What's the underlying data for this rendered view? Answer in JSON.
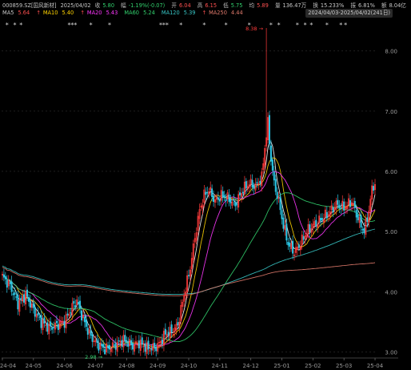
{
  "header": {
    "code": "000859.SZ[国风新材]",
    "date": "2025/04/02",
    "close_label": "收",
    "close": "5.80",
    "change_label": "幅",
    "change": "-1.19%(-0.07)",
    "open_label": "开",
    "open": "6.04",
    "high_label": "高",
    "high": "6.15",
    "low_label": "低",
    "low": "5.75",
    "avg_label": "均",
    "avg": "5.89",
    "volume_label": "量",
    "volume": "136.47万",
    "turnover_label": "换",
    "turnover": "15.233%",
    "amplitude_label": "振",
    "amplitude": "6.81%",
    "amount_label": "额",
    "amount": "8.04亿",
    "range": "2024/04/03-2025/04/02(241日)"
  },
  "ma_legend": [
    {
      "label": "MA5",
      "value": "5.64",
      "arrow": "",
      "color": "#ffffff"
    },
    {
      "label": "MA10",
      "value": "5.40",
      "arrow": "↑",
      "color": "#ffd400"
    },
    {
      "label": "MA20",
      "value": "5.43",
      "arrow": "↑",
      "color": "#ff37ff"
    },
    {
      "label": "MA60",
      "value": "5.24",
      "arrow": "",
      "color": "#32d26e"
    },
    {
      "label": "MA120",
      "value": "5.39",
      "arrow": "",
      "color": "#38c8c8"
    },
    {
      "label": "MA250",
      "value": "4.44",
      "arrow": "↑",
      "color": "#e07a6c"
    }
  ],
  "colors": {
    "up": "#ff3b3b",
    "down": "#2cc9e8",
    "grid": "#303030",
    "axis_text": "#9a9a9a",
    "star": "#d8d8d8"
  },
  "chart_data": {
    "type": "candlestick",
    "ylim": [
      2.9,
      8.5
    ],
    "y_ticks": [
      "3.00",
      "4.00",
      "5.00",
      "6.00",
      "7.00",
      "8.00"
    ],
    "x_ticks": [
      "24-04",
      "24-05",
      "24-06",
      "24-07",
      "24-08",
      "24-09",
      "24-10",
      "24-11",
      "24-12",
      "25-01",
      "25-02",
      "25-03",
      "25-04"
    ],
    "max_label": "8.38",
    "min_label": "2.98",
    "max_price": 8.38,
    "min_price": 2.98,
    "max_index": 170,
    "min_index": 66,
    "star_marker": "*",
    "star_indices": [
      3,
      8,
      12,
      43,
      45,
      47,
      57,
      69,
      102,
      104,
      106,
      115,
      130,
      144,
      159,
      173,
      178,
      190,
      195,
      199,
      209,
      218,
      221
    ],
    "anchors": [
      [
        0,
        4.25
      ],
      [
        5,
        4.1
      ],
      [
        10,
        3.8
      ],
      [
        15,
        3.95
      ],
      [
        20,
        3.7
      ],
      [
        25,
        3.5
      ],
      [
        30,
        3.4
      ],
      [
        35,
        3.45
      ],
      [
        40,
        3.5
      ],
      [
        45,
        3.75
      ],
      [
        48,
        3.85
      ],
      [
        52,
        3.55
      ],
      [
        56,
        3.3
      ],
      [
        60,
        3.15
      ],
      [
        66,
        3.05
      ],
      [
        72,
        3.1
      ],
      [
        78,
        3.2
      ],
      [
        84,
        3.1
      ],
      [
        88,
        3.15
      ],
      [
        94,
        3.05
      ],
      [
        100,
        3.1
      ],
      [
        105,
        3.3
      ],
      [
        110,
        3.35
      ],
      [
        113,
        3.45
      ],
      [
        117,
        3.95
      ],
      [
        121,
        4.4
      ],
      [
        124,
        4.9
      ],
      [
        127,
        5.35
      ],
      [
        130,
        5.6
      ],
      [
        133,
        5.7
      ],
      [
        137,
        5.5
      ],
      [
        141,
        5.6
      ],
      [
        145,
        5.55
      ],
      [
        150,
        5.45
      ],
      [
        155,
        5.7
      ],
      [
        159,
        5.8
      ],
      [
        163,
        5.75
      ],
      [
        167,
        5.9
      ],
      [
        169,
        6.4
      ],
      [
        171,
        6.8
      ],
      [
        173,
        6.2
      ],
      [
        175,
        5.8
      ],
      [
        178,
        5.5
      ],
      [
        181,
        5.1
      ],
      [
        184,
        4.8
      ],
      [
        188,
        4.65
      ],
      [
        192,
        4.8
      ],
      [
        196,
        5.0
      ],
      [
        200,
        5.1
      ],
      [
        205,
        5.2
      ],
      [
        210,
        5.3
      ],
      [
        215,
        5.45
      ],
      [
        220,
        5.4
      ],
      [
        225,
        5.5
      ],
      [
        230,
        5.15
      ],
      [
        233,
        5.0
      ],
      [
        236,
        5.35
      ],
      [
        238,
        5.7
      ],
      [
        240,
        5.8
      ]
    ]
  }
}
